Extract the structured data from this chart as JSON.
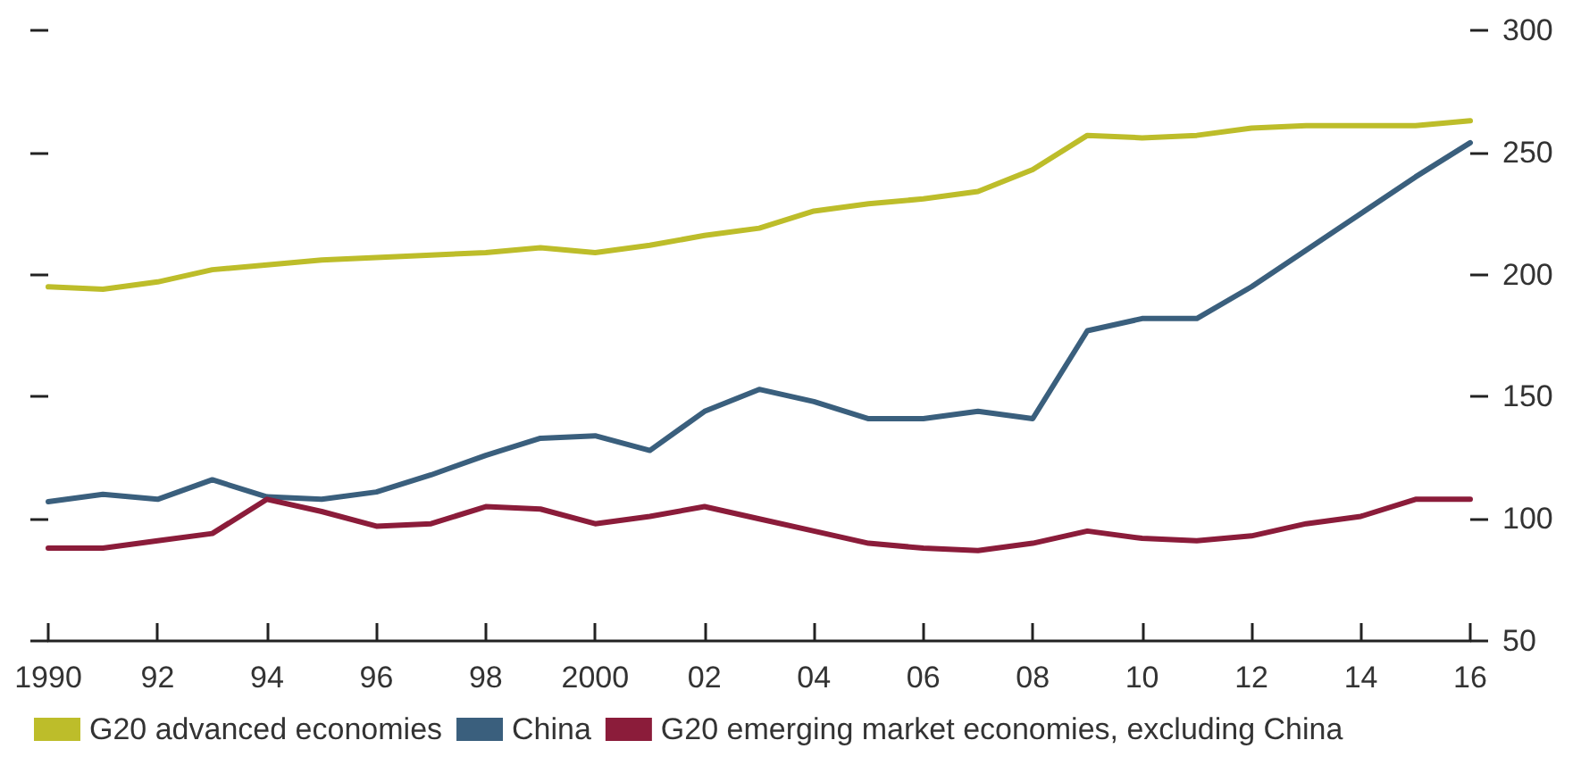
{
  "chart_data": {
    "type": "line",
    "x": [
      1990,
      1991,
      1992,
      1993,
      1994,
      1995,
      1996,
      1997,
      1998,
      1999,
      2000,
      2001,
      2002,
      2003,
      2004,
      2005,
      2006,
      2007,
      2008,
      2009,
      2010,
      2011,
      2012,
      2013,
      2014,
      2015,
      2016
    ],
    "series": [
      {
        "name": "G20 advanced economies",
        "color": "#bdbd2a",
        "values": [
          195,
          194,
          197,
          202,
          204,
          206,
          207,
          208,
          209,
          211,
          209,
          212,
          216,
          219,
          226,
          229,
          231,
          234,
          243,
          257,
          256,
          257,
          260,
          261,
          261,
          261,
          263
        ]
      },
      {
        "name": "China",
        "color": "#3a5f7d",
        "values": [
          107,
          110,
          108,
          116,
          109,
          108,
          111,
          118,
          126,
          133,
          134,
          128,
          144,
          153,
          148,
          141,
          141,
          144,
          141,
          177,
          182,
          182,
          195,
          210,
          225,
          240,
          254
        ]
      },
      {
        "name": "G20 emerging market economies, excluding China",
        "color": "#8b1c3a",
        "values": [
          88,
          88,
          91,
          94,
          108,
          103,
          97,
          98,
          105,
          104,
          98,
          101,
          105,
          100,
          95,
          90,
          88,
          87,
          90,
          95,
          92,
          91,
          93,
          98,
          101,
          108,
          108
        ]
      }
    ],
    "xlim": [
      1990,
      2016
    ],
    "xticks": [
      {
        "value": 1990,
        "label": "1990"
      },
      {
        "value": 1992,
        "label": "92"
      },
      {
        "value": 1994,
        "label": "94"
      },
      {
        "value": 1996,
        "label": "96"
      },
      {
        "value": 1998,
        "label": "98"
      },
      {
        "value": 2000,
        "label": "2000"
      },
      {
        "value": 2002,
        "label": "02"
      },
      {
        "value": 2004,
        "label": "04"
      },
      {
        "value": 2006,
        "label": "06"
      },
      {
        "value": 2008,
        "label": "08"
      },
      {
        "value": 2010,
        "label": "10"
      },
      {
        "value": 2012,
        "label": "12"
      },
      {
        "value": 2014,
        "label": "14"
      },
      {
        "value": 2016,
        "label": "16"
      }
    ],
    "ylim": [
      50,
      300
    ],
    "yticks": [
      50,
      100,
      150,
      200,
      250,
      300
    ],
    "grid": false,
    "legend": "bottom",
    "marker": "none",
    "line_style": "solid"
  }
}
